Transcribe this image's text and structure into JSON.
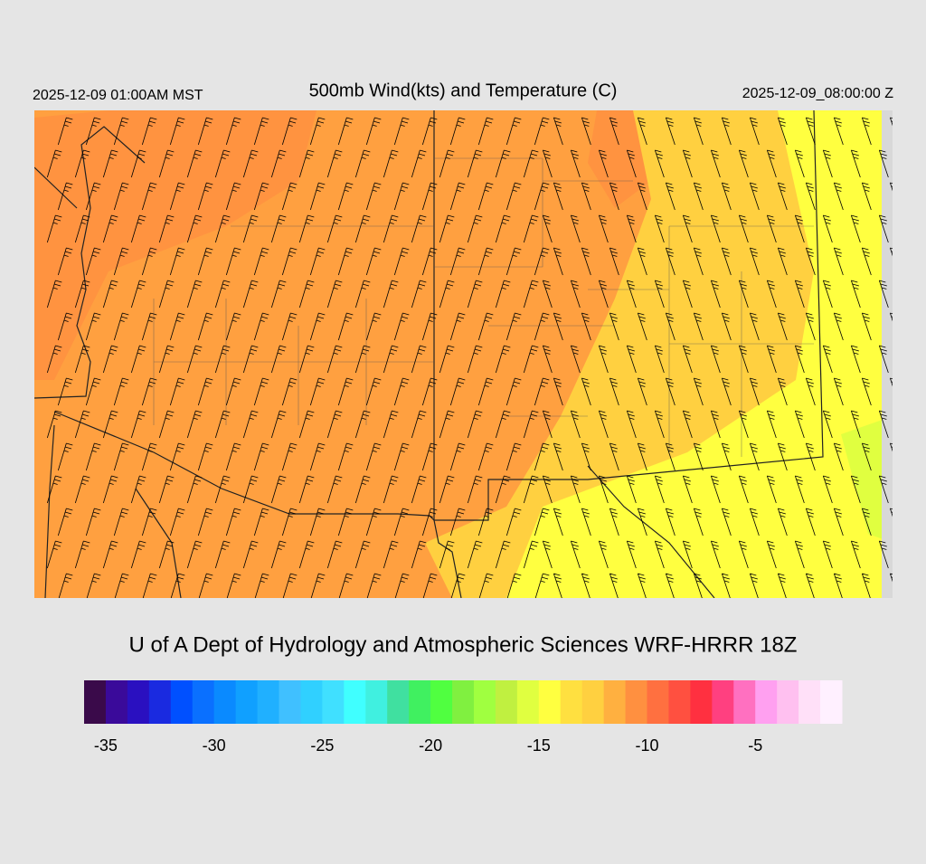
{
  "header": {
    "left": "2025-12-09 01:00AM MST",
    "title": "500mb Wind(kts) and Temperature (C)",
    "right": "2025-12-09_08:00:00 Z"
  },
  "credit": "U of A Dept of Hydrology and Atmospheric Sciences WRF-HRRR 18Z",
  "colorbar": {
    "range": [
      -36,
      -1
    ],
    "ticks": [
      -35,
      -30,
      -25,
      -20,
      -15,
      -10,
      -5
    ],
    "colors": [
      "#3a0a4a",
      "#3a0a9a",
      "#2a10c0",
      "#1a2ae0",
      "#0050ff",
      "#0a70ff",
      "#0a8aff",
      "#10a0ff",
      "#20b0ff",
      "#40c0ff",
      "#30d0ff",
      "#40e0ff",
      "#40ffff",
      "#40f0e0",
      "#40e0a0",
      "#40f060",
      "#50ff40",
      "#80f040",
      "#a0ff40",
      "#c0f040",
      "#e0ff40",
      "#ffff40",
      "#ffe040",
      "#ffd040",
      "#ffb040",
      "#ff9040",
      "#ff7040",
      "#ff5040",
      "#ff3040",
      "#ff4080",
      "#ff70c0",
      "#ffa0f0",
      "#ffc0f0",
      "#ffe0f8",
      "#fff0ff"
    ]
  }
}
